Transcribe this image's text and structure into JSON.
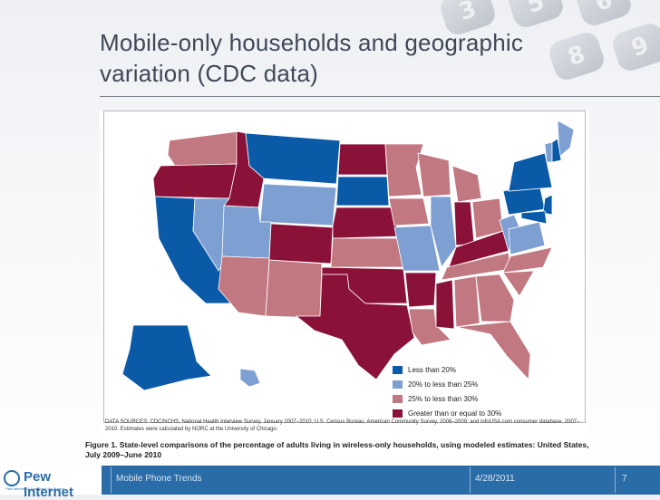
{
  "slide": {
    "title_line1": "Mobile-only households and geographic",
    "title_line2": "variation (CDC data)",
    "keypad_digits": [
      "3",
      "5",
      "6",
      "8",
      "9"
    ]
  },
  "map": {
    "legend": [
      {
        "label": "Less than 20%",
        "color": "#0b5aa8"
      },
      {
        "label": "20% to less than 25%",
        "color": "#7d9fd2"
      },
      {
        "label": "25% to less than 30%",
        "color": "#c27880"
      },
      {
        "label": "Greater than or equal to 30%",
        "color": "#8a1239"
      }
    ],
    "states": {
      "WA": "c",
      "OR": "d",
      "CA": "a",
      "NV": "b",
      "ID": "d",
      "MT": "a",
      "WY": "b",
      "UT": "b",
      "AZ": "c",
      "CO": "d",
      "NM": "c",
      "ND": "d",
      "SD": "a",
      "NE": "d",
      "KS": "c",
      "OK": "d",
      "TX": "d",
      "MN": "c",
      "IA": "c",
      "MO": "b",
      "AR": "d",
      "LA": "c",
      "WI": "c",
      "IL": "b",
      "MS": "d",
      "MI": "c",
      "IN": "d",
      "KY": "d",
      "TN": "c",
      "AL": "c",
      "GA": "c",
      "FL": "c",
      "OH": "c",
      "WV": "b",
      "VA": "b",
      "NC": "c",
      "SC": "c",
      "PA": "a",
      "NY": "a",
      "ME": "b",
      "VT": "b",
      "NH": "a",
      "NJ": "a",
      "MD": "a",
      "AK": "a",
      "HI": "b"
    },
    "sources": "DATA SOURCES: CDC/NCHS, National Health Interview Survey, January 2007–2010; U.S. Census Bureau, American Community Survey, 2006–2009; and infoUSA.com consumer database, 2007–2010. Estimates were calculated by NORC at the University of Chicago.",
    "caption": "Figure 1. State-level comparisons of the percentage of adults living in wireless-only households, using modeled estimates: United States, July 2009–June 2010"
  },
  "footer": {
    "logo": "Pew Internet",
    "logo_sub": "Pew Internet & American Life Project",
    "topic": "Mobile Phone Trends",
    "date": "4/28/2011",
    "page": "7"
  }
}
